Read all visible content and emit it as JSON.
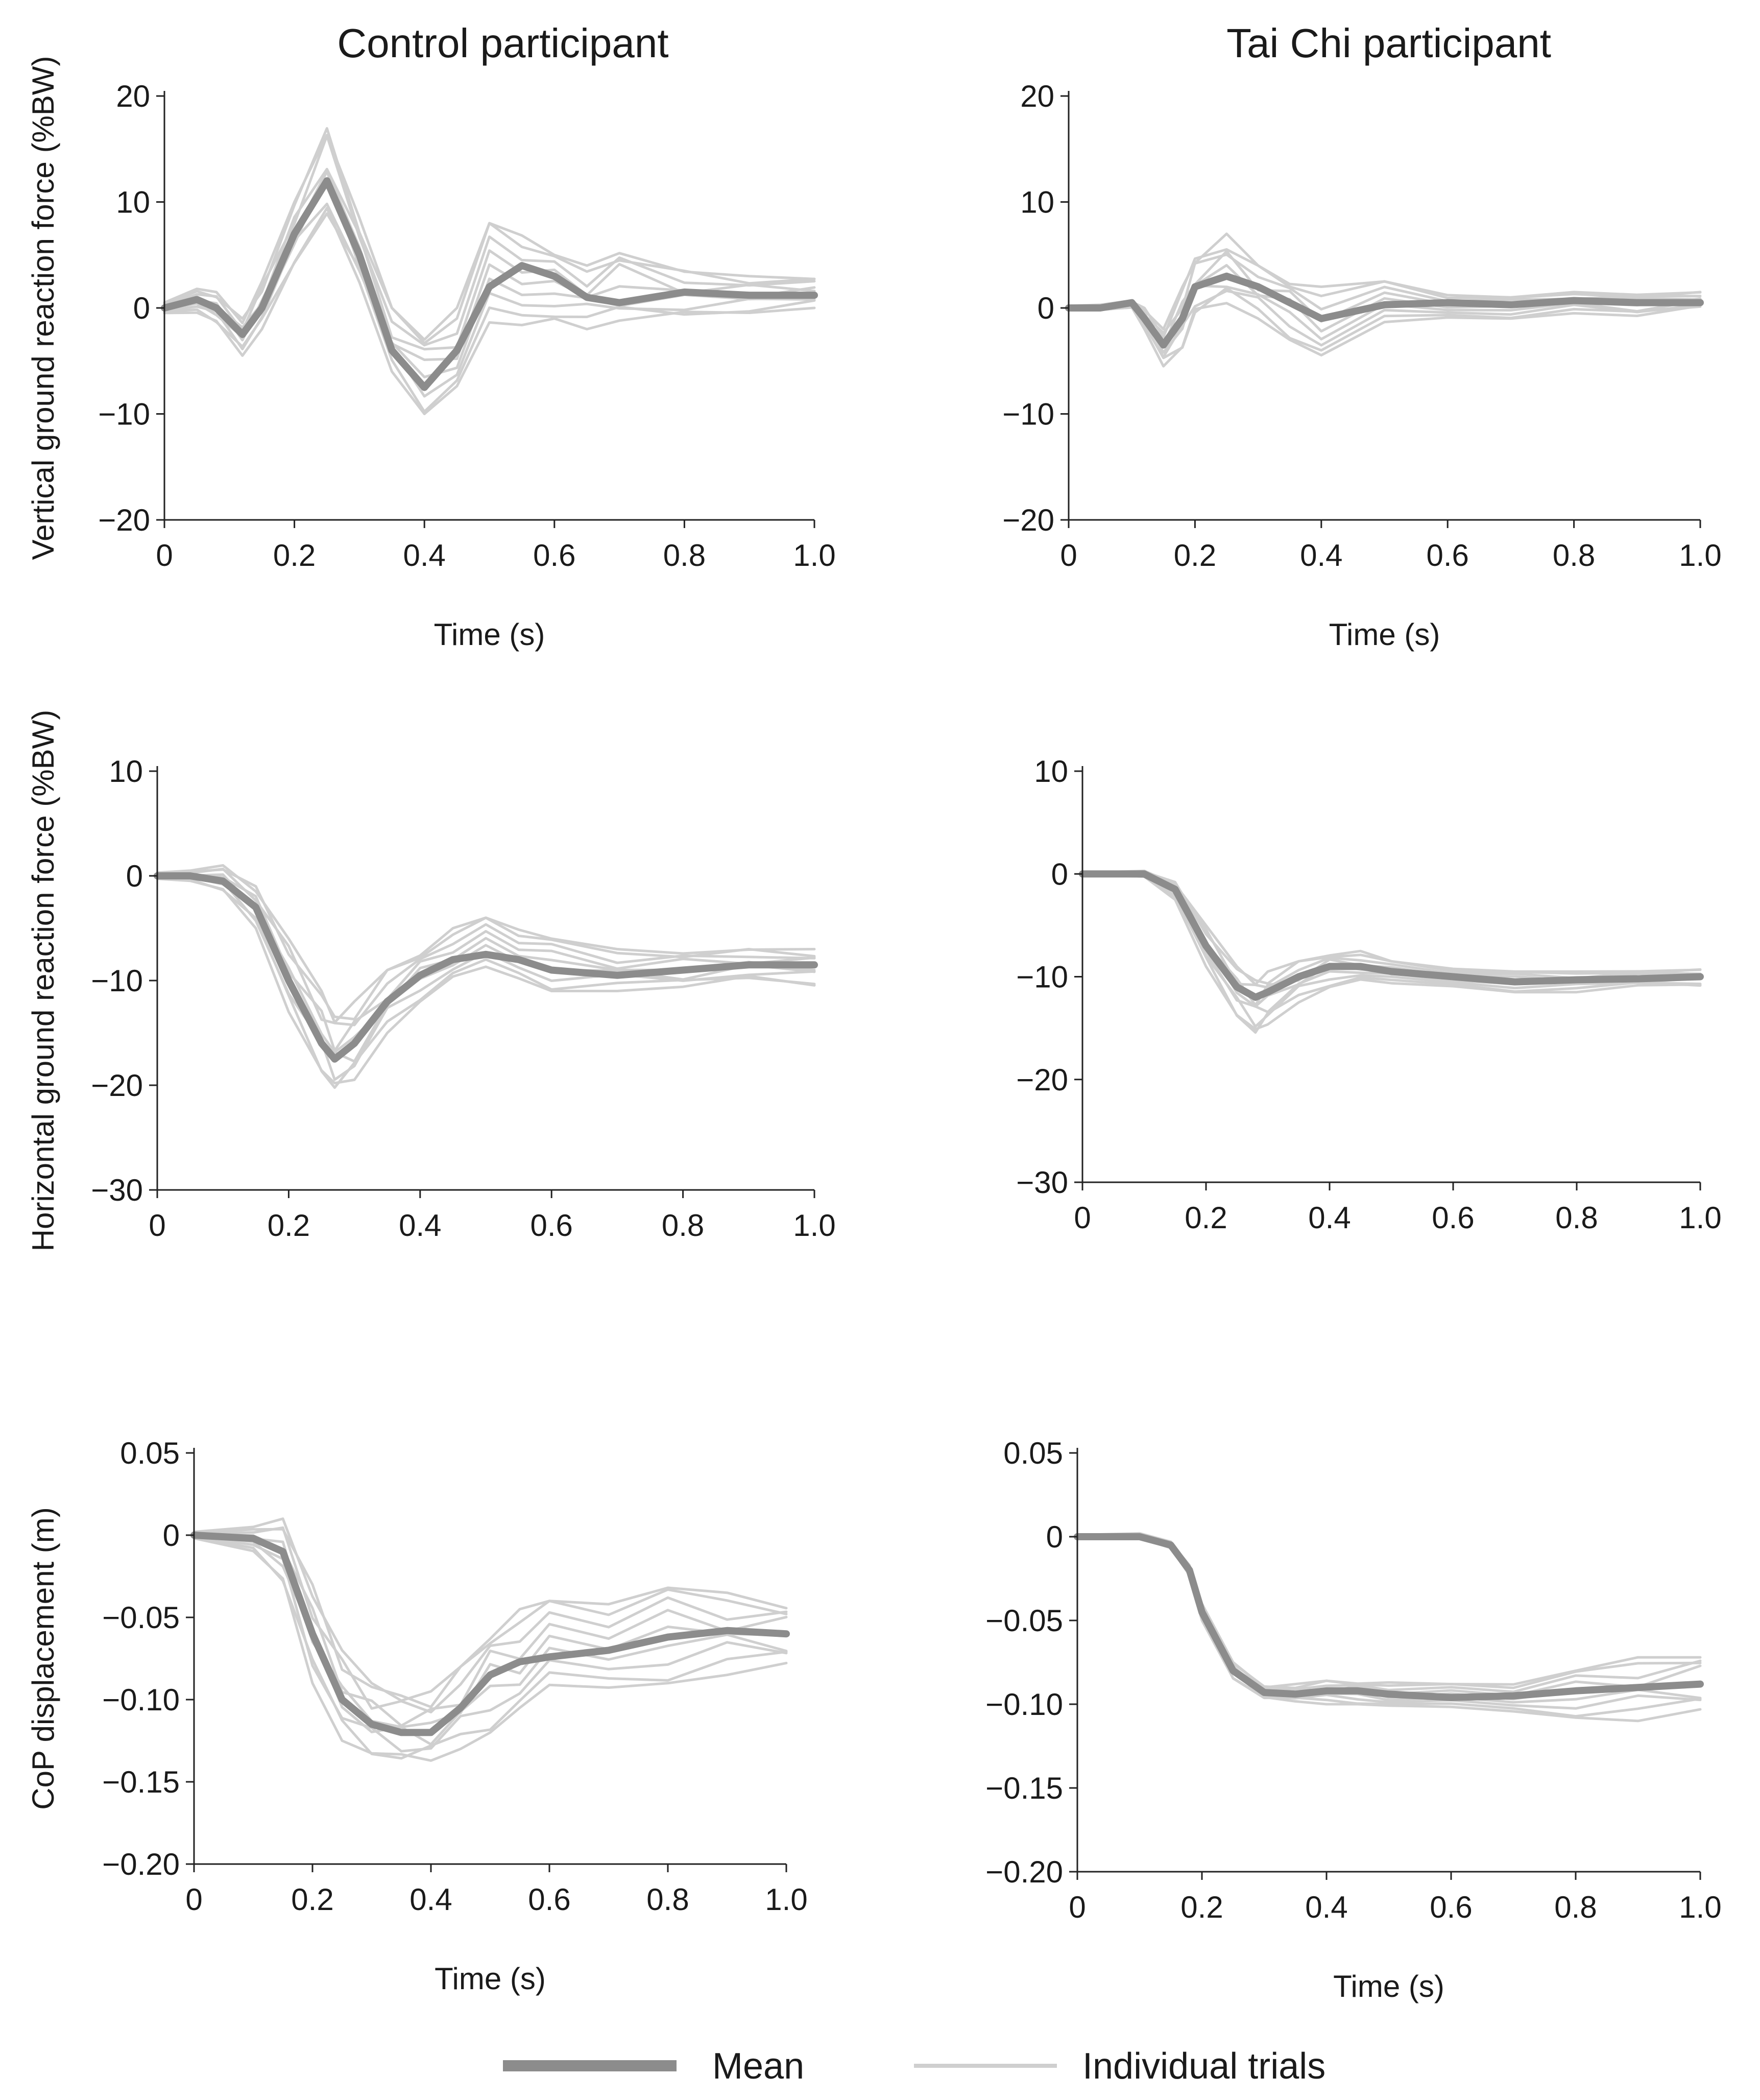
{
  "colors": {
    "mean": "#8c8c8c",
    "trial": "#cfcfcf",
    "axis": "#222222",
    "text": "#1a1a1a"
  },
  "columns": [
    {
      "id": "control",
      "title": "Control participant"
    },
    {
      "id": "taichi",
      "title": "Tai Chi participant"
    }
  ],
  "legend": {
    "mean_label": "Mean",
    "trials_label": "Individual trials"
  },
  "chart_data": [
    {
      "type": "line",
      "panel": "vertical-grf-control",
      "column": "Control participant",
      "xlabel": "Time (s)",
      "ylabel": "Vertical ground reaction force (%BW)",
      "xlim": [
        0,
        1.0
      ],
      "ylim": [
        -20,
        20
      ],
      "xticks": [
        0,
        0.2,
        0.4,
        0.6,
        0.8,
        1.0
      ],
      "xtick_labels": [
        "0",
        "0.2",
        "0.4",
        "0.6",
        "0.8",
        "1.0"
      ],
      "yticks": [
        20,
        10,
        0,
        -10,
        -20
      ],
      "ytick_labels": [
        "20",
        "10",
        "0",
        "−10",
        "−20"
      ],
      "x": [
        0,
        0.05,
        0.08,
        0.12,
        0.15,
        0.2,
        0.25,
        0.3,
        0.35,
        0.4,
        0.45,
        0.5,
        0.55,
        0.6,
        0.65,
        0.7,
        0.8,
        0.9,
        1.0
      ],
      "series": [
        {
          "name": "Mean",
          "values": [
            0,
            0.8,
            0,
            -2.5,
            0,
            7,
            12,
            5,
            -4,
            -7.5,
            -4,
            2,
            4,
            3,
            1,
            0.5,
            1.5,
            1.2,
            1.2
          ]
        }
      ],
      "trial_range": {
        "lower": [
          -0.5,
          -0.5,
          -1.5,
          -4.5,
          -2,
          4,
          8,
          2,
          -6,
          -10,
          -8,
          -3,
          -2,
          -1,
          -2,
          -2,
          -1,
          -0.5,
          0
        ],
        "upper": [
          0.5,
          1.8,
          1.5,
          -1,
          2.5,
          10,
          17.5,
          8.5,
          0,
          -2,
          0,
          8,
          8,
          5,
          4,
          6,
          3.5,
          3,
          3
        ]
      }
    },
    {
      "type": "line",
      "panel": "vertical-grf-taichi",
      "column": "Tai Chi participant",
      "xlabel": "Time (s)",
      "ylabel": "",
      "xlim": [
        0,
        1.0
      ],
      "ylim": [
        -20,
        20
      ],
      "xticks": [
        0,
        0.2,
        0.4,
        0.6,
        0.8,
        1.0
      ],
      "xtick_labels": [
        "0",
        "0.2",
        "0.4",
        "0.6",
        "0.8",
        "1.0"
      ],
      "yticks": [
        20,
        10,
        0,
        -10,
        -20
      ],
      "ytick_labels": [
        "20",
        "10",
        "0",
        "−10",
        "−20"
      ],
      "x": [
        0,
        0.05,
        0.1,
        0.12,
        0.15,
        0.18,
        0.2,
        0.25,
        0.3,
        0.35,
        0.4,
        0.5,
        0.6,
        0.7,
        0.8,
        0.9,
        1.0
      ],
      "series": [
        {
          "name": "Mean",
          "values": [
            0,
            0,
            0.5,
            -1,
            -3.5,
            -1,
            2,
            3,
            2,
            0.5,
            -1,
            0.3,
            0.5,
            0.3,
            0.7,
            0.5,
            0.5
          ]
        }
      ],
      "trial_range": {
        "lower": [
          -0.2,
          -0.2,
          0,
          -2,
          -5.5,
          -4,
          -1,
          0,
          -1,
          -3,
          -5,
          -2,
          -1,
          -1,
          -0.5,
          -1,
          0
        ],
        "upper": [
          0.2,
          0.3,
          0.7,
          0,
          -2,
          2,
          5,
          7,
          4,
          3,
          2,
          2.5,
          1.5,
          1,
          1.5,
          1.5,
          1.5
        ]
      }
    },
    {
      "type": "line",
      "panel": "horizontal-grf-control",
      "column": "Control participant",
      "xlabel": "",
      "ylabel": "Horizontal ground reaction force (%BW)",
      "xlim": [
        0,
        1.0
      ],
      "ylim": [
        -30,
        10
      ],
      "xticks": [
        0,
        0.2,
        0.4,
        0.6,
        0.8,
        1.0
      ],
      "xtick_labels": [
        "0",
        "0.2",
        "0.4",
        "0.6",
        "0.8",
        "1.0"
      ],
      "yticks": [
        10,
        0,
        -10,
        -20,
        -30
      ],
      "ytick_labels": [
        "10",
        "0",
        "−10",
        "−20",
        "−30"
      ],
      "x": [
        0,
        0.05,
        0.1,
        0.15,
        0.2,
        0.25,
        0.27,
        0.3,
        0.35,
        0.4,
        0.45,
        0.5,
        0.55,
        0.6,
        0.7,
        0.8,
        0.9,
        1.0
      ],
      "series": [
        {
          "name": "Mean",
          "values": [
            0,
            0,
            -0.5,
            -3,
            -10,
            -16,
            -17.5,
            -16,
            -12,
            -9.5,
            -8,
            -7.5,
            -8,
            -9,
            -9.5,
            -9,
            -8.5,
            -8.5
          ]
        }
      ],
      "trial_range": {
        "lower": [
          -0.3,
          -0.5,
          -1.5,
          -5,
          -13,
          -19,
          -21,
          -20,
          -15,
          -12,
          -10,
          -9.5,
          -10,
          -11,
          -11,
          -11,
          -10,
          -10.5
        ],
        "upper": [
          0.3,
          0.5,
          1,
          -1,
          -6,
          -11,
          -13,
          -12,
          -9,
          -7,
          -5,
          -4,
          -4.5,
          -6,
          -7,
          -7,
          -7,
          -7
        ]
      }
    },
    {
      "type": "line",
      "panel": "horizontal-grf-taichi",
      "column": "Tai Chi participant",
      "xlabel": "",
      "ylabel": "",
      "xlim": [
        0,
        1.0
      ],
      "ylim": [
        -30,
        10
      ],
      "xticks": [
        0,
        0.2,
        0.4,
        0.6,
        0.8,
        1.0
      ],
      "xtick_labels": [
        "0",
        "0.2",
        "0.4",
        "0.6",
        "0.8",
        "1.0"
      ],
      "yticks": [
        10,
        0,
        -10,
        -20,
        -30
      ],
      "ytick_labels": [
        "10",
        "0",
        "−10",
        "−20",
        "−30"
      ],
      "x": [
        0,
        0.05,
        0.1,
        0.15,
        0.2,
        0.25,
        0.28,
        0.3,
        0.35,
        0.4,
        0.45,
        0.5,
        0.6,
        0.7,
        0.8,
        0.9,
        1.0
      ],
      "series": [
        {
          "name": "Mean",
          "values": [
            0,
            0,
            0,
            -1.5,
            -7,
            -11,
            -12,
            -11.5,
            -10,
            -9,
            -9,
            -9.5,
            -10,
            -10.5,
            -10.3,
            -10.2,
            -10
          ]
        }
      ],
      "trial_range": {
        "lower": [
          -0.2,
          -0.2,
          -0.3,
          -2.5,
          -9,
          -14,
          -16,
          -15,
          -12.5,
          -11,
          -10.5,
          -11,
          -11,
          -11.5,
          -11.5,
          -11,
          -11
        ],
        "upper": [
          0.2,
          0.2,
          0.3,
          -0.8,
          -5,
          -9,
          -10,
          -9.5,
          -8.5,
          -7.5,
          -7.5,
          -8.5,
          -9,
          -9.5,
          -9.5,
          -9.3,
          -9.3
        ]
      }
    },
    {
      "type": "line",
      "panel": "cop-displacement-control",
      "column": "Control participant",
      "xlabel": "Time (s)",
      "ylabel": "CoP displacement (m)",
      "xlim": [
        0,
        1.0
      ],
      "ylim": [
        -0.2,
        0.05
      ],
      "xticks": [
        0,
        0.2,
        0.4,
        0.6,
        0.8,
        1.0
      ],
      "xtick_labels": [
        "0",
        "0.2",
        "0.4",
        "0.6",
        "0.8",
        "1.0"
      ],
      "yticks": [
        0.05,
        0,
        -0.05,
        -0.1,
        -0.15,
        -0.2
      ],
      "ytick_labels": [
        "0.05",
        "0",
        "−0.05",
        "−0.10",
        "−0.15",
        "−0.20"
      ],
      "x": [
        0,
        0.1,
        0.15,
        0.2,
        0.25,
        0.3,
        0.35,
        0.4,
        0.45,
        0.5,
        0.55,
        0.6,
        0.7,
        0.8,
        0.9,
        1.0
      ],
      "series": [
        {
          "name": "Mean",
          "values": [
            0,
            -0.002,
            -0.01,
            -0.06,
            -0.1,
            -0.115,
            -0.12,
            -0.12,
            -0.105,
            -0.085,
            -0.077,
            -0.074,
            -0.07,
            -0.062,
            -0.058,
            -0.06
          ]
        }
      ],
      "trial_range": {
        "lower": [
          -0.002,
          -0.01,
          -0.03,
          -0.09,
          -0.125,
          -0.135,
          -0.14,
          -0.14,
          -0.13,
          -0.12,
          -0.11,
          -0.1,
          -0.095,
          -0.09,
          -0.085,
          -0.082
        ],
        "upper": [
          0.002,
          0.005,
          0.01,
          -0.03,
          -0.07,
          -0.09,
          -0.095,
          -0.095,
          -0.08,
          -0.055,
          -0.045,
          -0.04,
          -0.035,
          -0.032,
          -0.035,
          -0.04
        ]
      }
    },
    {
      "type": "line",
      "panel": "cop-displacement-taichi",
      "column": "Tai Chi participant",
      "xlabel": "Time (s)",
      "ylabel": "",
      "xlim": [
        0,
        1.0
      ],
      "ylim": [
        -0.2,
        0.05
      ],
      "xticks": [
        0,
        0.2,
        0.4,
        0.6,
        0.8,
        1.0
      ],
      "xtick_labels": [
        "0",
        "0.2",
        "0.4",
        "0.6",
        "0.8",
        "1.0"
      ],
      "yticks": [
        0.05,
        0,
        -0.05,
        -0.1,
        -0.15,
        -0.2
      ],
      "ytick_labels": [
        "0.05",
        "0",
        "−0.05",
        "−0.10",
        "−0.15",
        "−0.20"
      ],
      "x": [
        0,
        0.1,
        0.15,
        0.18,
        0.2,
        0.25,
        0.3,
        0.35,
        0.4,
        0.45,
        0.5,
        0.6,
        0.7,
        0.8,
        0.9,
        1.0
      ],
      "series": [
        {
          "name": "Mean",
          "values": [
            0,
            0,
            -0.005,
            -0.02,
            -0.045,
            -0.08,
            -0.093,
            -0.094,
            -0.092,
            -0.092,
            -0.094,
            -0.096,
            -0.095,
            -0.092,
            -0.09,
            -0.088
          ]
        }
      ],
      "trial_range": {
        "lower": [
          -0.001,
          -0.001,
          -0.007,
          -0.023,
          -0.05,
          -0.085,
          -0.097,
          -0.099,
          -0.1,
          -0.1,
          -0.102,
          -0.104,
          -0.105,
          -0.108,
          -0.11,
          -0.107
        ],
        "upper": [
          0.001,
          0.002,
          -0.003,
          -0.017,
          -0.04,
          -0.075,
          -0.089,
          -0.088,
          -0.086,
          -0.086,
          -0.087,
          -0.088,
          -0.086,
          -0.08,
          -0.072,
          -0.068
        ]
      }
    }
  ]
}
